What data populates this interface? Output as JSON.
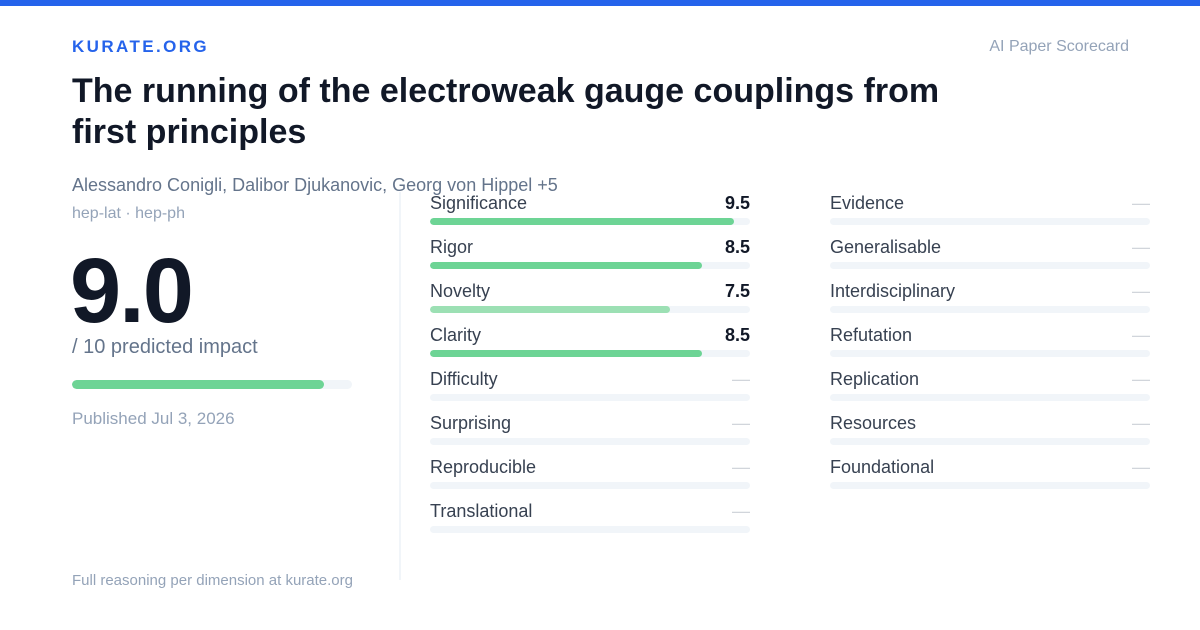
{
  "colors": {
    "accent": "#2563eb",
    "bar_strong": "#6dd495",
    "bar_light": "#9ce0b4",
    "track": "#f1f5f9"
  },
  "brand": "KURATE.ORG",
  "tagline": "AI Paper Scorecard",
  "paper": {
    "title": "The running of the electroweak gauge couplings from first principles",
    "authors": "Alessandro Conigli, Dalibor Djukanovic, Georg von Hippel +5",
    "categories": "hep-lat · hep-ph"
  },
  "score": {
    "value": "9.0",
    "caption": "/ 10 predicted impact",
    "fraction": 0.9
  },
  "published": "Published Jul 3, 2026",
  "footer": "Full reasoning per dimension at kurate.org",
  "metrics_left": [
    {
      "label": "Significance",
      "display": "9.5",
      "fraction": 0.95,
      "tone": "strong"
    },
    {
      "label": "Rigor",
      "display": "8.5",
      "fraction": 0.85,
      "tone": "strong"
    },
    {
      "label": "Novelty",
      "display": "7.5",
      "fraction": 0.75,
      "tone": "light"
    },
    {
      "label": "Clarity",
      "display": "8.5",
      "fraction": 0.85,
      "tone": "strong"
    },
    {
      "label": "Difficulty",
      "display": "—",
      "fraction": 0,
      "tone": "none"
    },
    {
      "label": "Surprising",
      "display": "—",
      "fraction": 0,
      "tone": "none"
    },
    {
      "label": "Reproducible",
      "display": "—",
      "fraction": 0,
      "tone": "none"
    },
    {
      "label": "Translational",
      "display": "—",
      "fraction": 0,
      "tone": "none"
    }
  ],
  "metrics_right": [
    {
      "label": "Evidence",
      "display": "—",
      "fraction": 0,
      "tone": "none"
    },
    {
      "label": "Generalisable",
      "display": "—",
      "fraction": 0,
      "tone": "none"
    },
    {
      "label": "Interdisciplinary",
      "display": "—",
      "fraction": 0,
      "tone": "none"
    },
    {
      "label": "Refutation",
      "display": "—",
      "fraction": 0,
      "tone": "none"
    },
    {
      "label": "Replication",
      "display": "—",
      "fraction": 0,
      "tone": "none"
    },
    {
      "label": "Resources",
      "display": "—",
      "fraction": 0,
      "tone": "none"
    },
    {
      "label": "Foundational",
      "display": "—",
      "fraction": 0,
      "tone": "none"
    }
  ]
}
